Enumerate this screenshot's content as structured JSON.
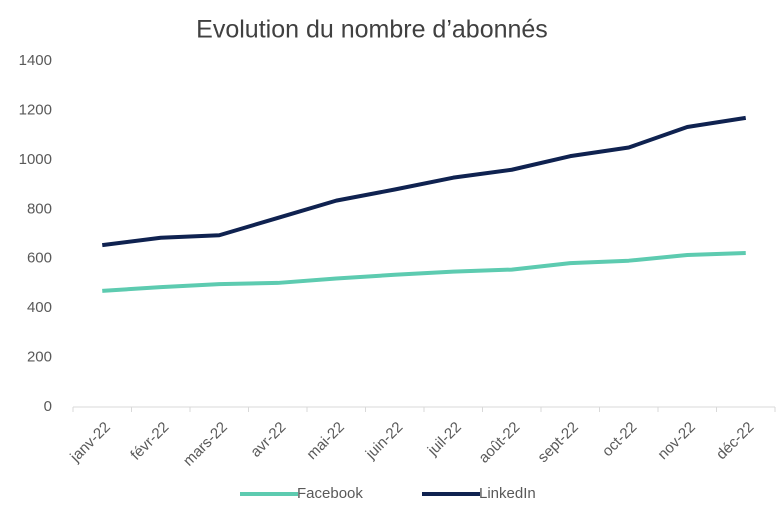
{
  "chart_data": {
    "type": "line",
    "title": "Evolution du nombre d’abonnés",
    "categories": [
      "janv-22",
      "févr-22",
      "mars-22",
      "avr-22",
      "mai-22",
      "juin-22",
      "juil-22",
      "août-22",
      "sept-22",
      "oct-22",
      "nov-22",
      "déc-22"
    ],
    "series": [
      {
        "name": "Facebook",
        "color": "#5dcbb0",
        "values": [
          470,
          485,
          497,
          502,
          520,
          535,
          548,
          556,
          582,
          592,
          615,
          623
        ]
      },
      {
        "name": "LinkedIn",
        "color": "#0f2250",
        "values": [
          655,
          685,
          695,
          765,
          835,
          880,
          928,
          960,
          1015,
          1050,
          1133,
          1170
        ]
      }
    ],
    "ylim": [
      0,
      1400
    ],
    "yticks": [
      0,
      200,
      400,
      600,
      800,
      1000,
      1200,
      1400
    ],
    "legend": "bottom"
  }
}
